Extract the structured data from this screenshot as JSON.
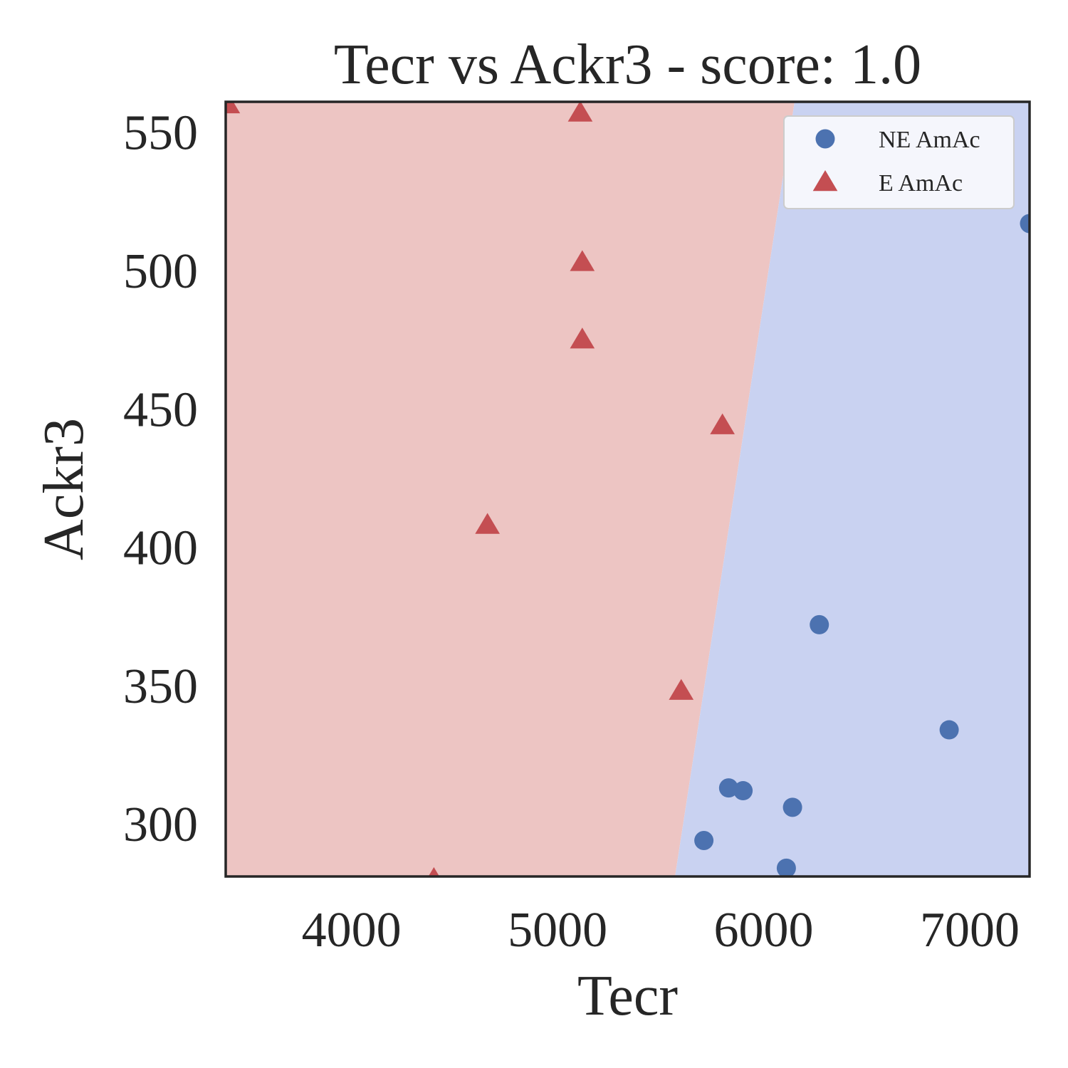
{
  "chart_data": {
    "type": "scatter",
    "title": "Tecr vs Ackr3 - score: 1.0",
    "xlabel": "Tecr",
    "ylabel": "Ackr3",
    "xlim": [
      3390,
      7290
    ],
    "ylim": [
      281,
      561
    ],
    "xticks": [
      4000,
      5000,
      6000,
      7000
    ],
    "yticks": [
      300,
      350,
      400,
      450,
      500,
      550
    ],
    "grid": false,
    "legend_position": "top-right",
    "decision_boundary": {
      "top": [
        6150,
        561
      ],
      "bottom": [
        5570,
        281
      ],
      "left_region_class": "E AmAc",
      "right_region_class": "NE AmAc"
    },
    "series": [
      {
        "name": "NE AmAc",
        "marker": "circle",
        "color": "#4c72b0",
        "points": [
          [
            7290,
            517
          ],
          [
            6270,
            372
          ],
          [
            6900,
            334
          ],
          [
            5830,
            313
          ],
          [
            5900,
            312
          ],
          [
            6140,
            306
          ],
          [
            5710,
            294
          ],
          [
            6110,
            284
          ]
        ]
      },
      {
        "name": "E AmAc",
        "marker": "triangle",
        "color": "#c44e52",
        "points": [
          [
            3400,
            560
          ],
          [
            5110,
            557
          ],
          [
            5120,
            503
          ],
          [
            5120,
            475
          ],
          [
            5800,
            444
          ],
          [
            4660,
            408
          ],
          [
            5600,
            348
          ],
          [
            4400,
            280
          ]
        ]
      }
    ],
    "region_colors": {
      "E AmAc": "#edc5c3",
      "NE AmAc": "#c9d2f1"
    }
  }
}
